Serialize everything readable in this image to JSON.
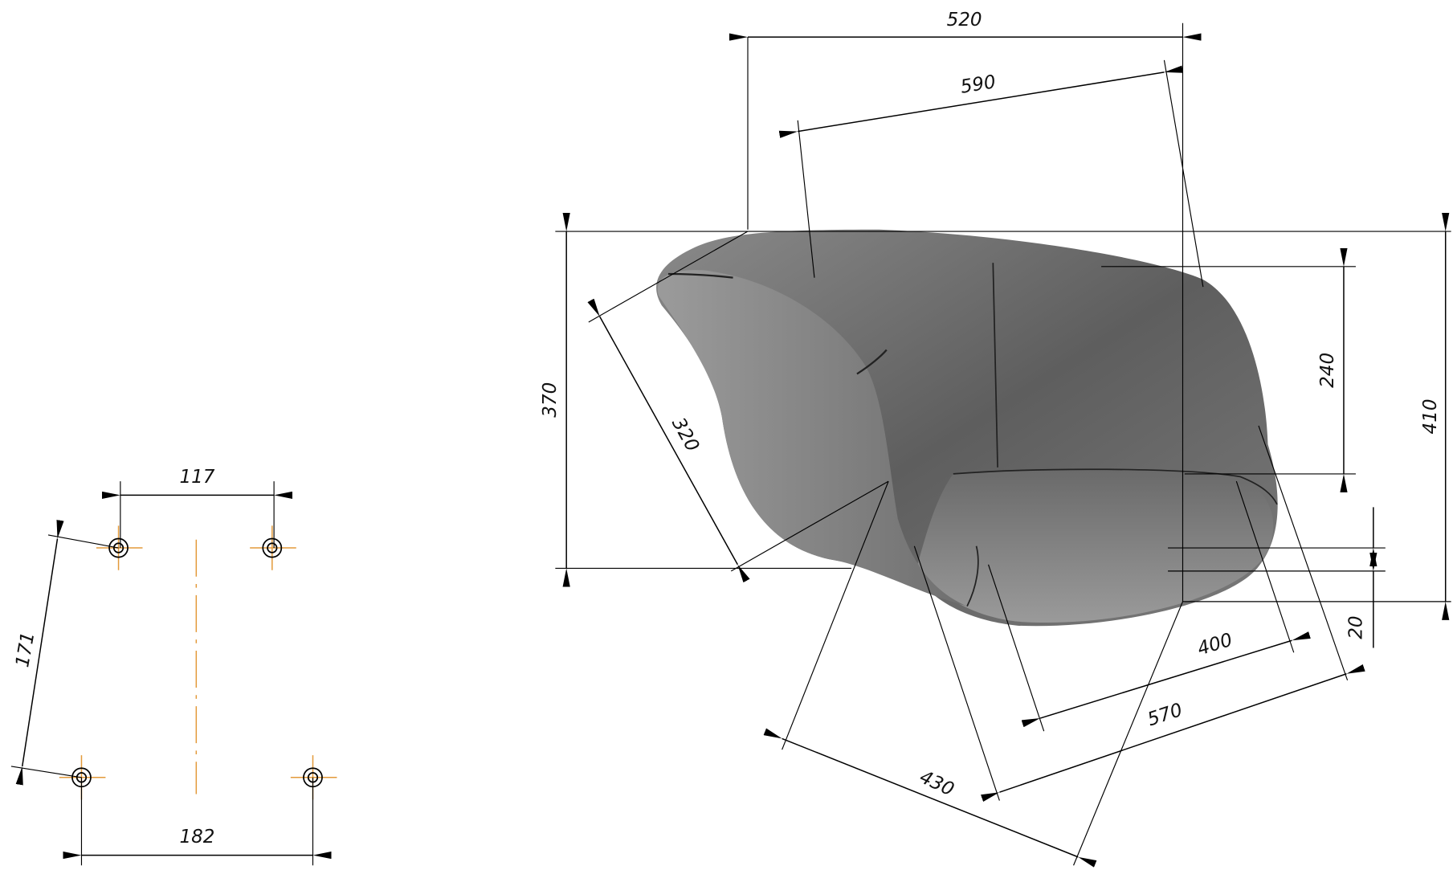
{
  "dimensions": {
    "chair": [
      "520",
      "590",
      "370",
      "320",
      "410",
      "240",
      "20",
      "400",
      "570",
      "430"
    ],
    "base": [
      "117",
      "171",
      "182"
    ]
  }
}
